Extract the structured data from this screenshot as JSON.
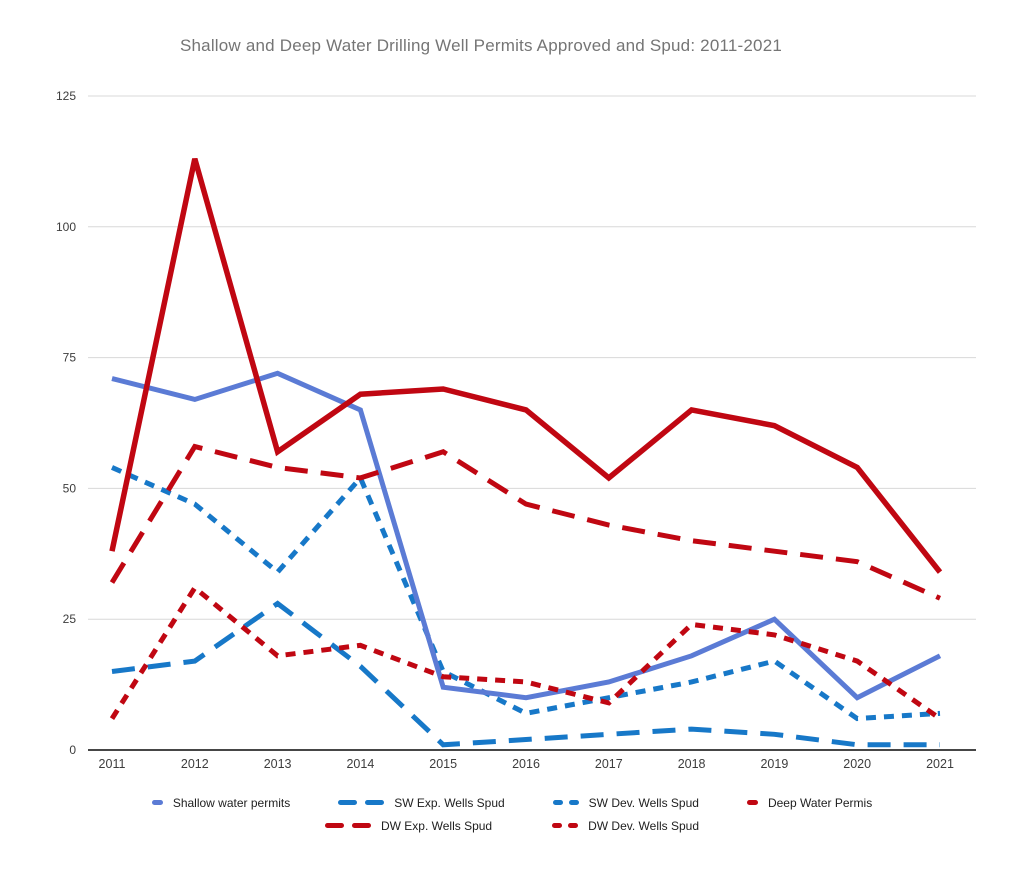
{
  "title": "Shallow and Deep Water Drilling Well Permits Approved and Spud: 2011-2021",
  "chart_data": {
    "type": "line",
    "x": [
      2011,
      2012,
      2013,
      2014,
      2015,
      2016,
      2017,
      2018,
      2019,
      2020,
      2021
    ],
    "ylim": [
      0,
      125
    ],
    "y_ticks": [
      0,
      25,
      50,
      75,
      100,
      125
    ],
    "grid": true,
    "legend_position": "bottom",
    "series": [
      {
        "name": "Shallow water permits",
        "color": "#5b7bd5",
        "style": "solid",
        "values": [
          71,
          67,
          72,
          65,
          12,
          10,
          13,
          18,
          25,
          10,
          18
        ]
      },
      {
        "name": "SW Exp. Wells Spud",
        "color": "#1778c8",
        "style": "long-dash",
        "values": [
          15,
          17,
          28,
          16,
          1,
          2,
          3,
          4,
          3,
          1,
          1
        ]
      },
      {
        "name": "SW Dev. Wells Spud",
        "color": "#1778c8",
        "style": "short-dash",
        "values": [
          54,
          47,
          34,
          52,
          15,
          7,
          10,
          13,
          17,
          6,
          7
        ]
      },
      {
        "name": "Deep Water Permis",
        "color": "#c00712",
        "style": "solid",
        "values": [
          38,
          113,
          57,
          68,
          69,
          65,
          52,
          65,
          62,
          54,
          34
        ]
      },
      {
        "name": "DW Exp. Wells Spud",
        "color": "#c00712",
        "style": "long-dash",
        "values": [
          32,
          58,
          54,
          52,
          57,
          47,
          43,
          40,
          38,
          36,
          29
        ]
      },
      {
        "name": "DW Dev. Wells Spud",
        "color": "#c00712",
        "style": "short-dash",
        "values": [
          6,
          31,
          18,
          20,
          14,
          13,
          9,
          24,
          22,
          17,
          6
        ]
      }
    ],
    "legend_rows": [
      [
        0,
        1,
        2,
        3
      ],
      [
        4,
        5
      ]
    ],
    "axis_text_color": "#3d3d3d",
    "grid_color": "#d8d8d8",
    "axis_line_color": "#2b2b2b"
  }
}
